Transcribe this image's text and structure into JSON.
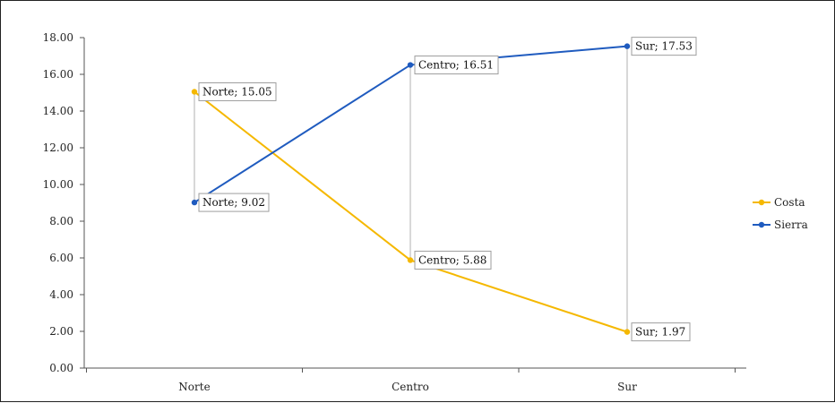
{
  "chart_data": {
    "type": "line",
    "title": "",
    "xlabel": "",
    "ylabel": "",
    "categories": [
      "Norte",
      "Centro",
      "Sur"
    ],
    "ylim": [
      0,
      18
    ],
    "y_ticks": [
      "0.00",
      "2.00",
      "4.00",
      "6.00",
      "8.00",
      "10.00",
      "12.00",
      "14.00",
      "16.00",
      "18.00"
    ],
    "series": [
      {
        "name": "Costa",
        "color": "#F5B800",
        "values": [
          15.05,
          5.88,
          1.97
        ],
        "labels": [
          "Norte; 15.05",
          "Centro; 5.88",
          "Sur; 1.97"
        ]
      },
      {
        "name": "Sierra",
        "color": "#1F5BBF",
        "values": [
          9.02,
          16.51,
          17.53
        ],
        "labels": [
          "Norte; 9.02",
          "Centro; 16.51",
          "Sur; 17.53"
        ]
      }
    ],
    "grid": false,
    "drop_lines": true,
    "legend_position": "right"
  }
}
